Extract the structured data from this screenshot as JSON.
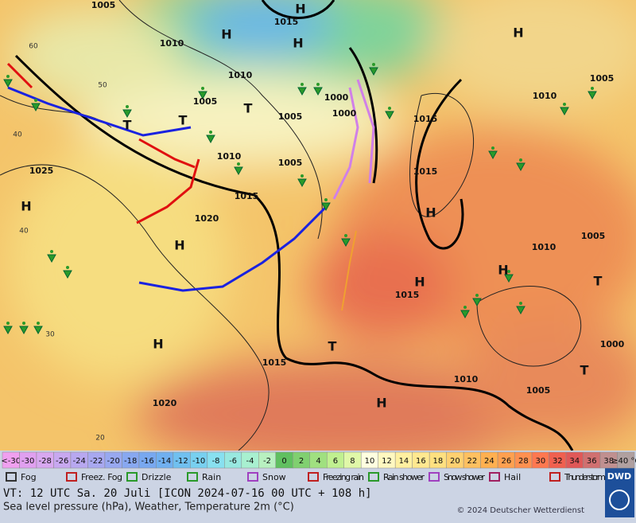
{
  "map": {
    "labels": [
      "1005",
      "1015",
      "H",
      "H",
      "H",
      "1010",
      "1010",
      "1005",
      "T",
      "1000",
      "1005",
      "1000",
      "T",
      "T",
      "1010",
      "1005",
      "1015",
      "1025",
      "H",
      "1020",
      "H",
      "1015",
      "1015",
      "H",
      "1010",
      "H",
      "1005",
      "1005",
      "1010",
      "H",
      "H",
      "1015",
      "T",
      "1000",
      "T",
      "1010",
      "1005",
      "H",
      "T",
      "H",
      "1015",
      "1020",
      "60",
      "50",
      "40",
      "40",
      "30",
      "20"
    ]
  },
  "colorbar": {
    "labels": [
      "<-30",
      "-30",
      "-28",
      "-26",
      "-24",
      "-22",
      "-20",
      "-18",
      "-16",
      "-14",
      "-12",
      "-10",
      "-8",
      "-6",
      "-4",
      "-2",
      "0",
      "2",
      "4",
      "6",
      "8",
      "10",
      "12",
      "14",
      "16",
      "18",
      "20",
      "22",
      "24",
      "26",
      "28",
      "30",
      "32",
      "34",
      "36",
      "38",
      "≥40 °C"
    ],
    "colors": [
      "#f0a0f0",
      "#e0a0f0",
      "#d8a8f0",
      "#c8a8f0",
      "#b8a8f0",
      "#a8a8f0",
      "#98a8f0",
      "#88a8f0",
      "#78a8f0",
      "#70b0f0",
      "#70c0f0",
      "#78d0f0",
      "#88e0f0",
      "#98e8e0",
      "#a8f0d0",
      "#b8f0c0",
      "#60c060",
      "#80d070",
      "#a0e080",
      "#c0f090",
      "#e0f8a8",
      "#ffffe0",
      "#fff8c0",
      "#fff0a0",
      "#ffe890",
      "#ffe080",
      "#ffd070",
      "#ffc060",
      "#ffb050",
      "#ffa050",
      "#ff9050",
      "#ff7850",
      "#f06050",
      "#e05858",
      "#d07070",
      "#c09090",
      "#b0a0a0"
    ]
  },
  "legend": [
    "Fog",
    "Freez. Fog",
    "Drizzle",
    "Rain",
    "Snow",
    "Freezing rain",
    "Rain shower",
    "Snow shower",
    "Hail",
    "Thunder storm"
  ],
  "footer": {
    "valid_time": "VT: 12 UTC Sa.  20 Juli [ICON 2024-07-16  00 UTC + 108 h]",
    "description": "Sea level pressure (hPa), Weather, Temperature 2m (°C)",
    "copyright": "© 2024 Deutscher Wetterdienst",
    "logo": "DWD"
  }
}
